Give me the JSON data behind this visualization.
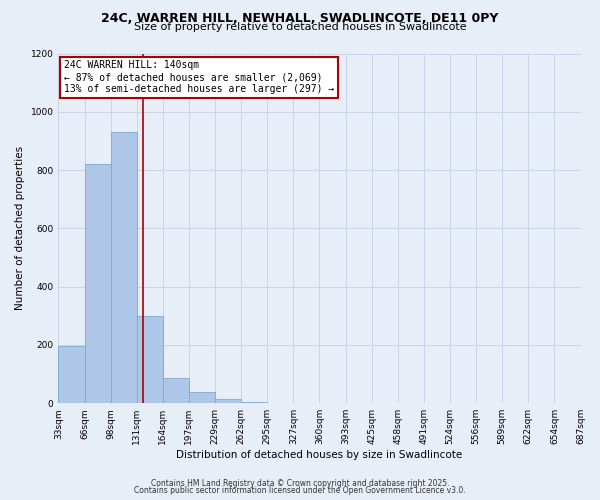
{
  "title_line1": "24C, WARREN HILL, NEWHALL, SWADLINCOTE, DE11 0PY",
  "title_line2": "Size of property relative to detached houses in Swadlincote",
  "bar_values": [
    197,
    820,
    930,
    300,
    85,
    37,
    15,
    5,
    0,
    0,
    0,
    0,
    0,
    0,
    0,
    0,
    0,
    0,
    0
  ],
  "bin_left_edges": [
    33,
    66,
    99,
    132,
    165,
    198,
    231,
    264,
    297,
    330,
    363,
    396,
    429,
    462,
    495,
    528,
    561,
    594,
    627
  ],
  "bin_width": 33,
  "xlabels": [
    "33sqm",
    "66sqm",
    "98sqm",
    "131sqm",
    "164sqm",
    "197sqm",
    "229sqm",
    "262sqm",
    "295sqm",
    "327sqm",
    "360sqm",
    "393sqm",
    "425sqm",
    "458sqm",
    "491sqm",
    "524sqm",
    "556sqm",
    "589sqm",
    "622sqm",
    "654sqm",
    "687sqm"
  ],
  "num_xticks": 21,
  "xmin": 33,
  "xmax": 693,
  "ylabel": "Number of detached properties",
  "xlabel": "Distribution of detached houses by size in Swadlincote",
  "vline_x": 140,
  "vline_color": "#aa0000",
  "bar_color": "#aec6e8",
  "bar_edge_color": "#7aaad0",
  "annotation_title": "24C WARREN HILL: 140sqm",
  "annotation_line1": "← 87% of detached houses are smaller (2,069)",
  "annotation_line2": "13% of semi-detached houses are larger (297) →",
  "annotation_box_facecolor": "#ffffff",
  "annotation_box_edgecolor": "#aa0000",
  "ylim": [
    0,
    1200
  ],
  "yticks": [
    0,
    200,
    400,
    600,
    800,
    1000,
    1200
  ],
  "footer_line1": "Contains HM Land Registry data © Crown copyright and database right 2025.",
  "footer_line2": "Contains public sector information licensed under the Open Government Licence v3.0.",
  "background_color": "#e8eef8",
  "grid_color": "#c8d4e8",
  "title_fontsize": 9,
  "subtitle_fontsize": 8,
  "axis_label_fontsize": 7.5,
  "tick_fontsize": 6.5,
  "annotation_fontsize": 7,
  "footer_fontsize": 5.5
}
